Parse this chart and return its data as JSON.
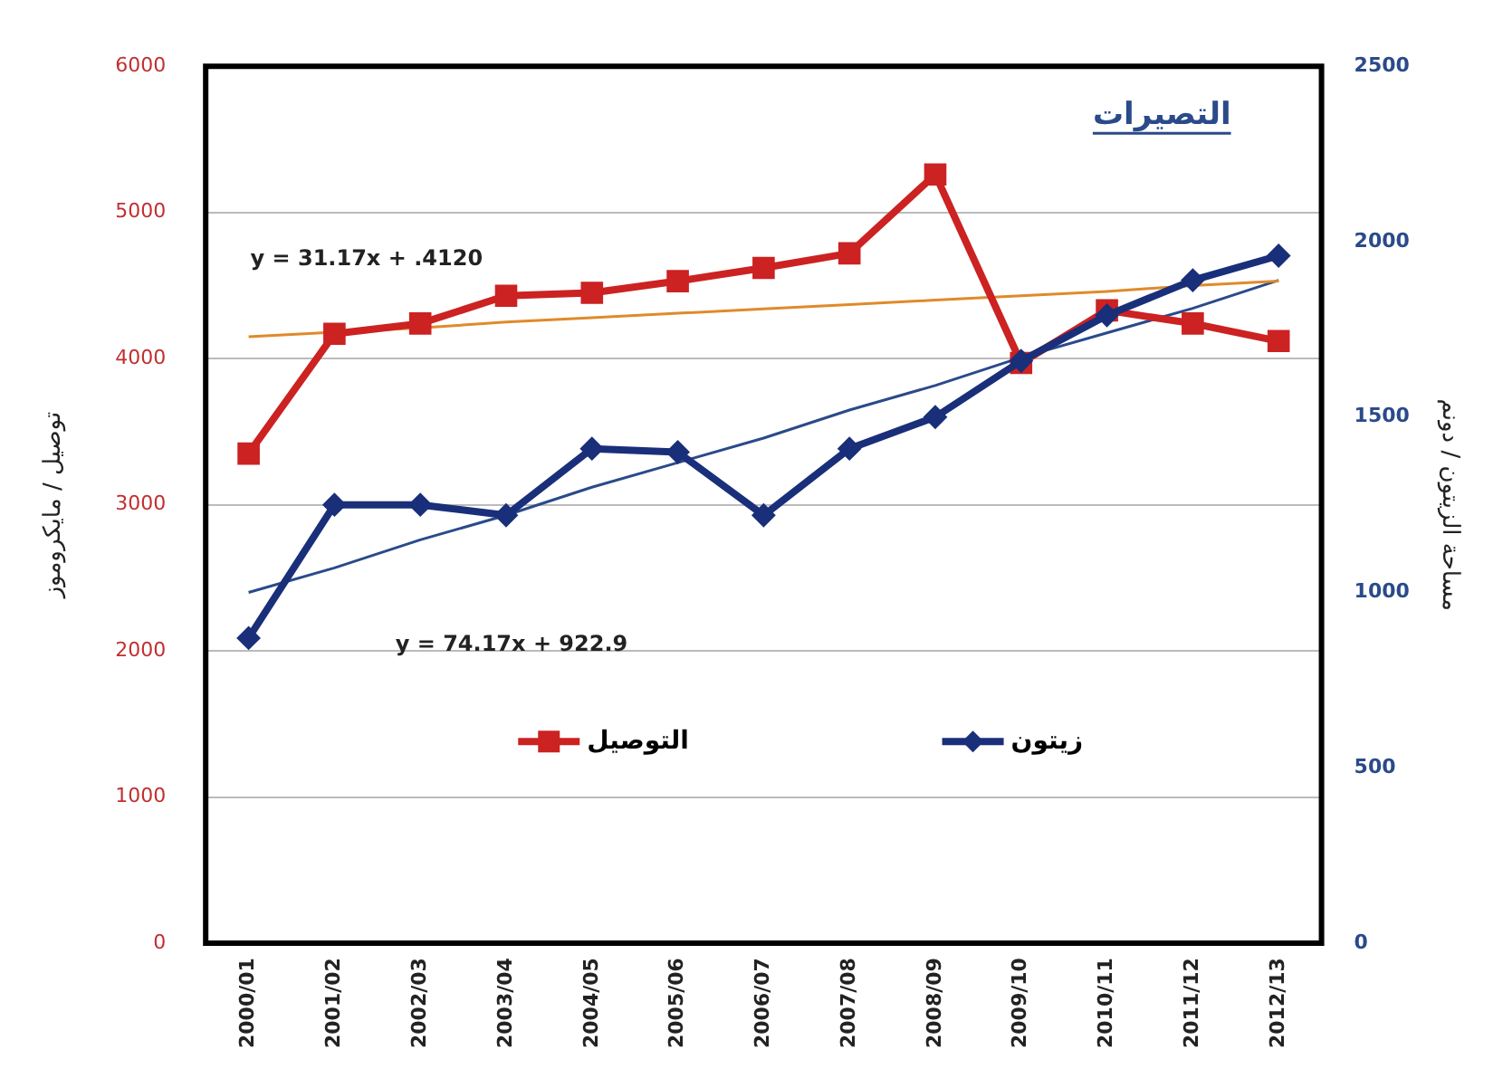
{
  "chart_data": {
    "type": "line",
    "title": "التصيرات",
    "ylabel": "توصيل / مايكروموز",
    "y2label": "مساحة الزيتون / دونم",
    "categories": [
      "2000/01",
      "2001/02",
      "2002/03",
      "2003/04",
      "2004/05",
      "2005/06",
      "2006/07",
      "2007/08",
      "2008/09",
      "2009/10",
      "2010/11",
      "2011/12",
      "2012/13"
    ],
    "series": [
      {
        "name": "التوصيل",
        "color": "#cc2222",
        "marker": "square",
        "values": [
          3350,
          4170,
          4240,
          4430,
          4450,
          4530,
          4620,
          4720,
          5260,
          3970,
          4330,
          4240,
          4120
        ]
      },
      {
        "name": "زيتون",
        "color": "#1a2f7a",
        "marker": "diamond",
        "axis": "y2",
        "values": [
          870,
          1250,
          1250,
          1220,
          1410,
          1400,
          1220,
          1410,
          1500,
          1660,
          1790,
          1890,
          1960
        ]
      },
      {
        "type": "line",
        "color": "#e08a2a",
        "marker": "none",
        "values": [
          4150,
          4180,
          4210,
          4250,
          4280,
          4310,
          4340,
          4370,
          4400,
          4430,
          4460,
          4500,
          4530
        ]
      },
      {
        "type": "line",
        "color": "#2a4a8a",
        "marker": "none",
        "axis": "y2",
        "values": [
          1000,
          1070,
          1150,
          1220,
          1300,
          1370,
          1440,
          1520,
          1590,
          1670,
          1740,
          1810,
          1890
        ]
      }
    ],
    "ylim": [
      0,
      6000
    ],
    "yticks": [
      0,
      1000,
      2000,
      3000,
      4000,
      5000,
      6000
    ],
    "y2lim": [
      0,
      2500
    ],
    "y2ticks": [
      0,
      500,
      1000,
      1500,
      2000,
      2500
    ],
    "annotations": [
      "y = 31.17x + .4120",
      "y = 74.17x + 922.9"
    ],
    "grid": "y",
    "legend": "bottom"
  }
}
